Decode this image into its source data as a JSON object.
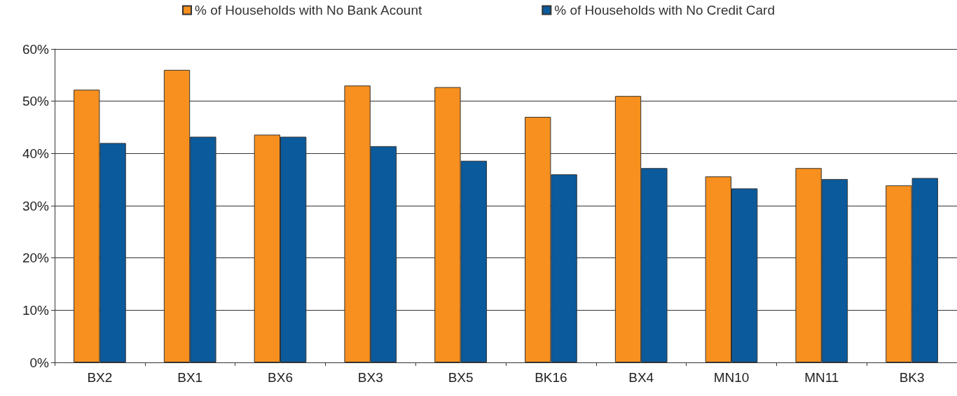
{
  "chart_data": {
    "type": "bar",
    "categories": [
      "BX2",
      "BX1",
      "BX6",
      "BX3",
      "BX5",
      "BK16",
      "BX4",
      "MN10",
      "MN11",
      "BK3"
    ],
    "series": [
      {
        "name": "% of Households with No Bank Acount",
        "color": "#f7901e",
        "values": [
          52.2,
          56.0,
          43.6,
          53.0,
          52.7,
          47.0,
          51.0,
          35.6,
          37.2,
          33.9
        ]
      },
      {
        "name": "% of Households with No Credit Card",
        "color": "#0b5a9c",
        "values": [
          42.0,
          43.2,
          43.2,
          41.4,
          38.6,
          36.0,
          37.2,
          33.3,
          35.1,
          35.3
        ]
      }
    ],
    "ylim": [
      0,
      60
    ],
    "yticks": [
      {
        "value": 0,
        "label": "0%"
      },
      {
        "value": 10,
        "label": "10%"
      },
      {
        "value": 20,
        "label": "20%"
      },
      {
        "value": 30,
        "label": "30%"
      },
      {
        "value": 40,
        "label": "40%"
      },
      {
        "value": 50,
        "label": "50%"
      },
      {
        "value": 60,
        "label": "60%"
      }
    ],
    "grid": "y",
    "legend": "top"
  }
}
